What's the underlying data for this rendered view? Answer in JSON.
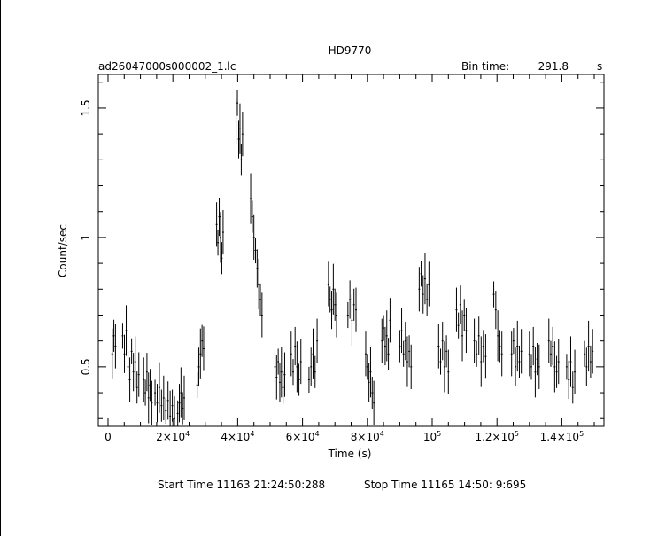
{
  "header": {
    "title": "HD9770",
    "file_name": "ad26047000s000002_1.lc",
    "bin_time_label": "Bin time:",
    "bin_time_value": "291.8",
    "bin_time_unit": "s"
  },
  "footer": {
    "start_label": "Start Time",
    "start_value": "11163 21:24:50:288",
    "stop_label": "Stop Time",
    "stop_value": "11165 14:50: 9:695"
  },
  "chart_data": {
    "type": "scatter",
    "title": "HD9770",
    "xlabel": "Time (s)",
    "ylabel": "Count/sec",
    "xlim": [
      -3000,
      153000
    ],
    "ylim": [
      0.27,
      1.63
    ],
    "x_ticks": [
      {
        "value": 0,
        "label": "0",
        "sup": ""
      },
      {
        "value": 20000,
        "label": "2×10",
        "sup": "4"
      },
      {
        "value": 40000,
        "label": "4×10",
        "sup": "4"
      },
      {
        "value": 60000,
        "label": "6×10",
        "sup": "4"
      },
      {
        "value": 80000,
        "label": "8×10",
        "sup": "4"
      },
      {
        "value": 100000,
        "label": "10",
        "sup": "5"
      },
      {
        "value": 120000,
        "label": "1.2×10",
        "sup": "5"
      },
      {
        "value": 140000,
        "label": "1.4×10",
        "sup": "5"
      }
    ],
    "y_ticks": [
      {
        "value": 0.5,
        "label": "0.5"
      },
      {
        "value": 1.0,
        "label": "1"
      },
      {
        "value": 1.5,
        "label": "1.5"
      }
    ],
    "segments": [
      {
        "x_start": 1300,
        "x_end": 2300,
        "values": [
          0.55,
          0.62,
          0.58
        ]
      },
      {
        "x_start": 4500,
        "x_end": 9500,
        "values": [
          0.62,
          0.55,
          0.64,
          0.5,
          0.45,
          0.56,
          0.48,
          0.52,
          0.42,
          0.47
        ]
      },
      {
        "x_start": 11000,
        "x_end": 13500,
        "values": [
          0.45,
          0.4,
          0.48,
          0.38,
          0.43,
          0.36
        ]
      },
      {
        "x_start": 14500,
        "x_end": 20500,
        "values": [
          0.4,
          0.36,
          0.42,
          0.35,
          0.38,
          0.33,
          0.37,
          0.31,
          0.35,
          0.3
        ]
      },
      {
        "x_start": 21500,
        "x_end": 23500,
        "values": [
          0.32,
          0.36,
          0.4,
          0.34,
          0.38
        ]
      },
      {
        "x_start": 27500,
        "x_end": 29500,
        "values": [
          0.43,
          0.5,
          0.55,
          0.6,
          0.57
        ]
      },
      {
        "x_start": 33500,
        "x_end": 35500,
        "values": [
          1.05,
          0.98,
          1.08,
          1.0,
          0.92,
          1.02
        ]
      },
      {
        "x_start": 39500,
        "x_end": 41500,
        "values": [
          1.45,
          1.52,
          1.38,
          1.42,
          1.3,
          1.4
        ]
      },
      {
        "x_start": 44000,
        "x_end": 47500,
        "values": [
          1.15,
          1.08,
          1.0,
          0.95,
          0.88,
          0.82,
          0.76,
          0.7
        ]
      },
      {
        "x_start": 51500,
        "x_end": 54500,
        "values": [
          0.5,
          0.46,
          0.52,
          0.44,
          0.48,
          0.42,
          0.47
        ]
      },
      {
        "x_start": 56500,
        "x_end": 59500,
        "values": [
          0.55,
          0.48,
          0.58,
          0.5,
          0.45,
          0.52
        ]
      },
      {
        "x_start": 62000,
        "x_end": 64500,
        "values": [
          0.45,
          0.5,
          0.55,
          0.48,
          0.6
        ]
      },
      {
        "x_start": 68000,
        "x_end": 70500,
        "values": [
          0.82,
          0.76,
          0.72,
          0.8,
          0.74,
          0.7
        ]
      },
      {
        "x_start": 74000,
        "x_end": 76500,
        "values": [
          0.7,
          0.76,
          0.68,
          0.74,
          0.72
        ]
      },
      {
        "x_start": 79500,
        "x_end": 82000,
        "values": [
          0.55,
          0.5,
          0.44,
          0.48,
          0.4,
          0.36
        ]
      },
      {
        "x_start": 84500,
        "x_end": 87000,
        "values": [
          0.6,
          0.65,
          0.58,
          0.62,
          0.55,
          0.68
        ]
      },
      {
        "x_start": 90000,
        "x_end": 93500,
        "values": [
          0.58,
          0.64,
          0.55,
          0.6,
          0.52,
          0.56,
          0.5
        ]
      },
      {
        "x_start": 96000,
        "x_end": 99000,
        "values": [
          0.8,
          0.86,
          0.78,
          0.84,
          0.76,
          0.82
        ]
      },
      {
        "x_start": 102000,
        "x_end": 105000,
        "values": [
          0.58,
          0.52,
          0.6,
          0.5,
          0.56,
          0.48
        ]
      },
      {
        "x_start": 107500,
        "x_end": 110500,
        "values": [
          0.72,
          0.66,
          0.74,
          0.62,
          0.7,
          0.64
        ]
      },
      {
        "x_start": 113000,
        "x_end": 116500,
        "values": [
          0.6,
          0.55,
          0.62,
          0.52,
          0.58,
          0.54
        ]
      },
      {
        "x_start": 119000,
        "x_end": 121500,
        "values": [
          0.78,
          0.72,
          0.62,
          0.58,
          0.55
        ]
      },
      {
        "x_start": 124500,
        "x_end": 127500,
        "values": [
          0.55,
          0.6,
          0.5,
          0.58,
          0.52,
          0.56
        ]
      },
      {
        "x_start": 130000,
        "x_end": 133000,
        "values": [
          0.55,
          0.5,
          0.58,
          0.48,
          0.53,
          0.5
        ]
      },
      {
        "x_start": 136000,
        "x_end": 139000,
        "values": [
          0.6,
          0.55,
          0.58,
          0.5,
          0.48,
          0.52
        ]
      },
      {
        "x_start": 141500,
        "x_end": 144000,
        "values": [
          0.5,
          0.45,
          0.52,
          0.42,
          0.48
        ]
      },
      {
        "x_start": 147000,
        "x_end": 149500,
        "values": [
          0.55,
          0.5,
          0.58,
          0.52,
          0.56
        ]
      }
    ]
  }
}
